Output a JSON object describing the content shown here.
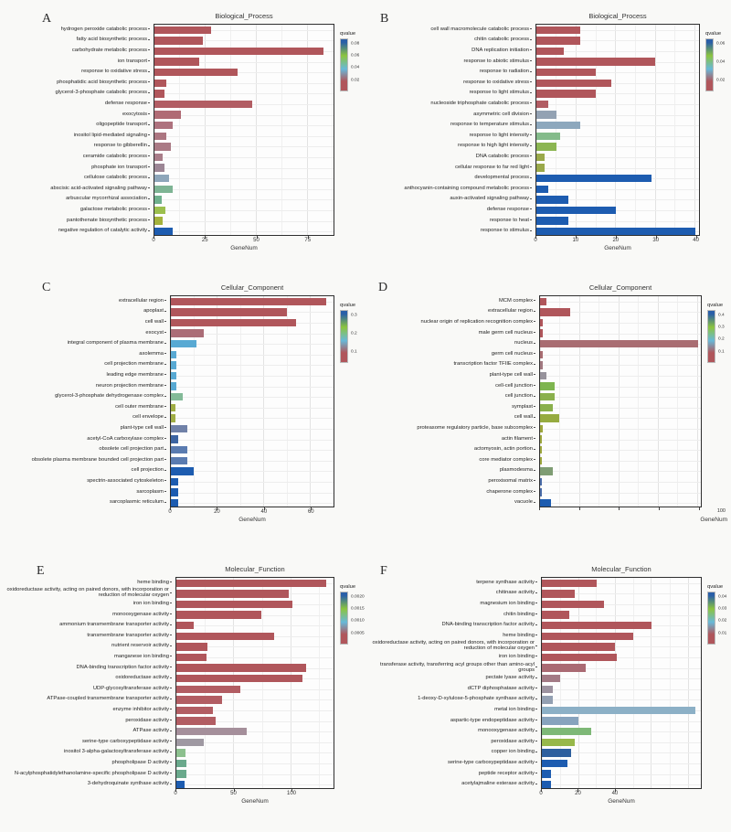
{
  "figure": {
    "description_labels": {
      "gene_axis": "GeneNum",
      "legend": "qvalue"
    },
    "panel_letters": [
      "A",
      "B",
      "C",
      "D",
      "E",
      "F"
    ]
  },
  "colors": {
    "legend_gradient": [
      "#2a5fa8",
      "#8cc43f",
      "#68b9d9",
      "#b0565b"
    ],
    "plot_border": "#2f2f2f",
    "grid_major": "#e3e3e3",
    "grid_minor": "#f0f0f0",
    "row_grid": "#ededed",
    "background": "#f9f9f7"
  },
  "chart_data": [
    {
      "id": "A",
      "type": "bar",
      "orientation": "horizontal",
      "title": "Biological_Process",
      "xlabel": "GeneNum",
      "xlim": [
        0,
        88
      ],
      "xticks": [
        0,
        25,
        50,
        75
      ],
      "show_tick_labels": true,
      "legend": {
        "title": "qvalue",
        "ticks": [
          "0.08",
          "0.06",
          "0.04",
          "0.02"
        ]
      },
      "bars": [
        {
          "label": "hydrogen peroxide catabolic process",
          "value": 28,
          "color": "#b0565b"
        },
        {
          "label": "fatty acid biosynthetic process",
          "value": 24,
          "color": "#b0565b"
        },
        {
          "label": "carbohydrate metabolic process",
          "value": 83,
          "color": "#b0565b"
        },
        {
          "label": "ion transport",
          "value": 22,
          "color": "#b0565b"
        },
        {
          "label": "response to oxidative stress",
          "value": 41,
          "color": "#b0565b"
        },
        {
          "label": "phosphatidic acid biosynthetic process",
          "value": 6,
          "color": "#b0565b"
        },
        {
          "label": "glycerol-3-phosphate catabolic process",
          "value": 5,
          "color": "#b0565b"
        },
        {
          "label": "defense response",
          "value": 48,
          "color": "#b25d63"
        },
        {
          "label": "exocytosis",
          "value": 13,
          "color": "#b06b74"
        },
        {
          "label": "oligopeptide transport",
          "value": 9,
          "color": "#ae727e"
        },
        {
          "label": "inositol lipid-mediated signaling",
          "value": 6,
          "color": "#ac7681"
        },
        {
          "label": "response to gibberellin",
          "value": 8,
          "color": "#aa7a85"
        },
        {
          "label": "ceramide catabolic process",
          "value": 4,
          "color": "#a97d89"
        },
        {
          "label": "phosphate ion transport",
          "value": 5,
          "color": "#9c8695"
        },
        {
          "label": "cellulose catabolic process",
          "value": 7,
          "color": "#8da6ba"
        },
        {
          "label": "abscisic acid-activated signaling pathway",
          "value": 9,
          "color": "#7eb494"
        },
        {
          "label": "arbuscular mycorrhizal association",
          "value": 3.5,
          "color": "#6fb08d"
        },
        {
          "label": "galactose metabolic process",
          "value": 5.5,
          "color": "#9cbf4e"
        },
        {
          "label": "pantothenate biosynthetic process",
          "value": 4,
          "color": "#a4b23c"
        },
        {
          "label": "negative regulation of catalytic activity",
          "value": 9,
          "color": "#1d5cb0"
        }
      ]
    },
    {
      "id": "B",
      "type": "bar",
      "orientation": "horizontal",
      "title": "Biological_Process",
      "xlabel": "GeneNum",
      "xlim": [
        0,
        41
      ],
      "xticks": [
        0,
        10,
        20,
        30,
        40
      ],
      "show_tick_labels": true,
      "legend": {
        "title": "qvalue",
        "ticks": [
          "0.06",
          "0.04",
          "0.02"
        ]
      },
      "bars": [
        {
          "label": "cell wall macromolecule catabolic process",
          "value": 11,
          "color": "#b0565b"
        },
        {
          "label": "chitin catabolic process",
          "value": 11,
          "color": "#b0565b"
        },
        {
          "label": "DNA replication initiation",
          "value": 7,
          "color": "#b0565b"
        },
        {
          "label": "response to abiotic stimulus",
          "value": 30,
          "color": "#b0565b"
        },
        {
          "label": "response to radiation",
          "value": 15,
          "color": "#b0565b"
        },
        {
          "label": "response to oxidative stress",
          "value": 19,
          "color": "#b0565b"
        },
        {
          "label": "response to light stimulus",
          "value": 15,
          "color": "#b0565b"
        },
        {
          "label": "nucleoside triphosphate catabolic process",
          "value": 3,
          "color": "#b25d63"
        },
        {
          "label": "asymmetric cell division",
          "value": 5,
          "color": "#93a2b3"
        },
        {
          "label": "response to temperature stimulus",
          "value": 11,
          "color": "#8da8bd"
        },
        {
          "label": "response to light intensity",
          "value": 6,
          "color": "#84bb8a"
        },
        {
          "label": "response to high light intensity",
          "value": 5,
          "color": "#8cb652"
        },
        {
          "label": "DNA catabolic process",
          "value": 2,
          "color": "#9aa94a"
        },
        {
          "label": "cellular response to far red light",
          "value": 2,
          "color": "#9aa94a"
        },
        {
          "label": "developmental process",
          "value": 29,
          "color": "#1d5cb0"
        },
        {
          "label": "anthocyanin-containing compound metabolic process",
          "value": 3,
          "color": "#1d5cb0"
        },
        {
          "label": "auxin-activated signaling pathway",
          "value": 8,
          "color": "#1d5cb0"
        },
        {
          "label": "defense response",
          "value": 20,
          "color": "#1d5cb0"
        },
        {
          "label": "response to heat",
          "value": 8,
          "color": "#1d5cb0"
        },
        {
          "label": "response to stimulus",
          "value": 40,
          "color": "#1d5cb0"
        }
      ]
    },
    {
      "id": "C",
      "type": "bar",
      "orientation": "horizontal",
      "title": "Cellular_Component",
      "xlabel": "GeneNum",
      "xlim": [
        0,
        70
      ],
      "xticks": [
        0,
        20,
        40,
        60
      ],
      "show_tick_labels": true,
      "legend": {
        "title": "qvalue",
        "ticks": [
          "0.3",
          "0.2",
          "0.1"
        ]
      },
      "bars": [
        {
          "label": "extracellular region",
          "value": 67,
          "color": "#b0565b"
        },
        {
          "label": "apoplast",
          "value": 50,
          "color": "#b0565b"
        },
        {
          "label": "cell wall",
          "value": 54,
          "color": "#b0565b"
        },
        {
          "label": "exocyst",
          "value": 14,
          "color": "#ab6d77"
        },
        {
          "label": "integral component of plasma membrane",
          "value": 11,
          "color": "#58a9d3"
        },
        {
          "label": "axolemma",
          "value": 2.5,
          "color": "#58a9d3"
        },
        {
          "label": "cell projection membrane",
          "value": 2.5,
          "color": "#58a9d3"
        },
        {
          "label": "leading edge membrane",
          "value": 2.5,
          "color": "#58a9d3"
        },
        {
          "label": "neuron projection membrane",
          "value": 2.5,
          "color": "#58a9d3"
        },
        {
          "label": "glycerol-3-phosphate dehydrogenase complex",
          "value": 5,
          "color": "#83ba98"
        },
        {
          "label": "cell outer membrane",
          "value": 2,
          "color": "#a0ad44"
        },
        {
          "label": "cell envelope",
          "value": 2,
          "color": "#a0ad44"
        },
        {
          "label": "plant-type cell wall",
          "value": 7,
          "color": "#7081a8"
        },
        {
          "label": "acetyl-CoA carboxylase complex",
          "value": 3,
          "color": "#3c64a2"
        },
        {
          "label": "obsolete cell projection part",
          "value": 7,
          "color": "#5a7bb0"
        },
        {
          "label": "obsolete plasma membrane bounded cell projection part",
          "value": 7,
          "color": "#5a7bb0"
        },
        {
          "label": "cell projection",
          "value": 10,
          "color": "#1d5cb0"
        },
        {
          "label": "spectrin-associated cytoskeleton",
          "value": 3,
          "color": "#1d5cb0"
        },
        {
          "label": "sarcoplasm",
          "value": 3,
          "color": "#1d5cb0"
        },
        {
          "label": "sarcoplasmic reticulum",
          "value": 3,
          "color": "#1d5cb0"
        }
      ]
    },
    {
      "id": "D",
      "type": "bar",
      "orientation": "horizontal",
      "title": "Cellular_Component",
      "xlabel": "GeneNum",
      "xlim": [
        0,
        102
      ],
      "xticks": [
        0,
        25,
        50,
        75,
        100
      ],
      "show_tick_labels": false,
      "corner_label": "100",
      "xlabel_align": "right",
      "legend": {
        "title": "qvalue",
        "ticks": [
          "0.4",
          "0.3",
          "0.2",
          "0.1"
        ]
      },
      "bars": [
        {
          "label": "MCM complex",
          "value": 4,
          "color": "#b0565b"
        },
        {
          "label": "extracellular region",
          "value": 19,
          "color": "#b0565b"
        },
        {
          "label": "nuclear origin of replication recognition complex",
          "value": 2,
          "color": "#b0565b"
        },
        {
          "label": "male germ cell nucleus",
          "value": 2,
          "color": "#b0565b"
        },
        {
          "label": "nucleus",
          "value": 100,
          "color": "#a96d72"
        },
        {
          "label": "germ cell nucleus",
          "value": 2,
          "color": "#a96d72"
        },
        {
          "label": "transcription factor TFIIE complex",
          "value": 2,
          "color": "#a27981"
        },
        {
          "label": "plant-type cell wall",
          "value": 4,
          "color": "#97939c"
        },
        {
          "label": "cell-cell junction",
          "value": 9,
          "color": "#7eb54f"
        },
        {
          "label": "cell junction",
          "value": 9,
          "color": "#8ab04c"
        },
        {
          "label": "symplast",
          "value": 8,
          "color": "#8ab04c"
        },
        {
          "label": "cell wall",
          "value": 12,
          "color": "#96ab40"
        },
        {
          "label": "proteasome regulatory particle, base subcomplex",
          "value": 2,
          "color": "#9da73e"
        },
        {
          "label": "actin filament",
          "value": 1,
          "color": "#9da73e"
        },
        {
          "label": "actomyosin, actin portion",
          "value": 1,
          "color": "#9da73e"
        },
        {
          "label": "core mediator complex",
          "value": 1,
          "color": "#9da73e"
        },
        {
          "label": "plasmodesma",
          "value": 8,
          "color": "#7f9d74"
        },
        {
          "label": "peroxisomal matrix",
          "value": 1,
          "color": "#4a6ca8"
        },
        {
          "label": "chaperone complex",
          "value": 1,
          "color": "#4a6ca8"
        },
        {
          "label": "vacuole",
          "value": 7,
          "color": "#1d5cb0"
        }
      ]
    },
    {
      "id": "E",
      "type": "bar",
      "orientation": "horizontal",
      "title": "Molecular_Function",
      "xlabel": "GeneNum",
      "xlim": [
        0,
        137
      ],
      "xticks": [
        0,
        50,
        100
      ],
      "show_tick_labels": true,
      "legend": {
        "title": "qvalue",
        "ticks": [
          "0.0020",
          "0.0015",
          "0.0010",
          "0.0005"
        ]
      },
      "bars": [
        {
          "label": "heme binding",
          "value": 131,
          "color": "#b0565b"
        },
        {
          "label": "oxidoreductase activity, acting on paired donors, with incorporation or reduction of molecular oxygen",
          "value": 98,
          "color": "#b0565b"
        },
        {
          "label": "iron ion binding",
          "value": 101,
          "color": "#b0565b"
        },
        {
          "label": "monooxygenase activity",
          "value": 74,
          "color": "#b0565b"
        },
        {
          "label": "ammonium transmembrane transporter activity",
          "value": 15,
          "color": "#b0565b"
        },
        {
          "label": "transmembrane transporter activity",
          "value": 85,
          "color": "#b0565b"
        },
        {
          "label": "nutrient reservoir activity",
          "value": 27,
          "color": "#b0565b"
        },
        {
          "label": "manganese ion binding",
          "value": 26,
          "color": "#b0565b"
        },
        {
          "label": "DNA-binding transcription factor activity",
          "value": 113,
          "color": "#b0565b"
        },
        {
          "label": "oxidoreductase activity",
          "value": 110,
          "color": "#b0565b"
        },
        {
          "label": "UDP-glycosyltransferase activity",
          "value": 56,
          "color": "#b25d63"
        },
        {
          "label": "ATPase-coupled transmembrane transporter activity",
          "value": 40,
          "color": "#b25d63"
        },
        {
          "label": "enzyme inhibitor activity",
          "value": 32,
          "color": "#b25d63"
        },
        {
          "label": "peroxidase activity",
          "value": 34,
          "color": "#b25d63"
        },
        {
          "label": "ATPase activity",
          "value": 61,
          "color": "#a58f9b"
        },
        {
          "label": "serine-type carboxypeptidase activity",
          "value": 24,
          "color": "#9f99a2"
        },
        {
          "label": "inositol 3-alpha-galactosyltransferase activity",
          "value": 8,
          "color": "#8cc08e"
        },
        {
          "label": "phospholipase D activity",
          "value": 9,
          "color": "#6aa98c"
        },
        {
          "label": "N-acylphosphatidylethanolamine-specific phospholipase D activity",
          "value": 9,
          "color": "#6aa98c"
        },
        {
          "label": "3-dehydroquinate synthase activity",
          "value": 7,
          "color": "#1d5cb0"
        }
      ]
    },
    {
      "id": "F",
      "type": "bar",
      "orientation": "horizontal",
      "title": "Molecular_Function",
      "xlabel": "GeneNum",
      "xlim": [
        0,
        87
      ],
      "xticks": [
        0,
        20,
        40
      ],
      "show_tick_labels": true,
      "legend": {
        "title": "qvalue",
        "ticks": [
          "0.04",
          "0.03",
          "0.02",
          "0.01"
        ]
      },
      "bars": [
        {
          "label": "terpene synthase activity",
          "value": 30,
          "color": "#b0565b"
        },
        {
          "label": "chitinase activity",
          "value": 18,
          "color": "#b0565b"
        },
        {
          "label": "magnesium ion binding",
          "value": 34,
          "color": "#b0565b"
        },
        {
          "label": "chitin binding",
          "value": 15,
          "color": "#b0565b"
        },
        {
          "label": "DNA-binding transcription factor activity",
          "value": 60,
          "color": "#b0565b"
        },
        {
          "label": "heme binding",
          "value": 50,
          "color": "#b0565b"
        },
        {
          "label": "oxidoreductase activity, acting on paired donors, with incorporation or reduction of molecular oxygen",
          "value": 40,
          "color": "#b0565b"
        },
        {
          "label": "iron ion binding",
          "value": 41,
          "color": "#b0565b"
        },
        {
          "label": "transferase activity, transferring acyl groups other than amino-acyl groups",
          "value": 24,
          "color": "#aa6a73"
        },
        {
          "label": "pectate lyase activity",
          "value": 10,
          "color": "#a37a85"
        },
        {
          "label": "dCTP diphosphatase activity",
          "value": 6,
          "color": "#9d93a0"
        },
        {
          "label": "1-deoxy-D-xylulose-5-phosphate synthase activity",
          "value": 6,
          "color": "#93a0b2"
        },
        {
          "label": "metal ion binding",
          "value": 84,
          "color": "#8cb0c6"
        },
        {
          "label": "aspartic-type endopeptidase activity",
          "value": 20,
          "color": "#87a3bd"
        },
        {
          "label": "monooxygenase activity",
          "value": 27,
          "color": "#7eb877"
        },
        {
          "label": "peroxidase activity",
          "value": 18,
          "color": "#97b84a"
        },
        {
          "label": "copper ion binding",
          "value": 16,
          "color": "#2d5f9e"
        },
        {
          "label": "serine-type carboxypeptidase activity",
          "value": 14,
          "color": "#1d5cb0"
        },
        {
          "label": "peptide receptor activity",
          "value": 5,
          "color": "#1d5cb0"
        },
        {
          "label": "acetylajmaline esterase activity",
          "value": 5,
          "color": "#1d5cb0"
        }
      ]
    }
  ]
}
